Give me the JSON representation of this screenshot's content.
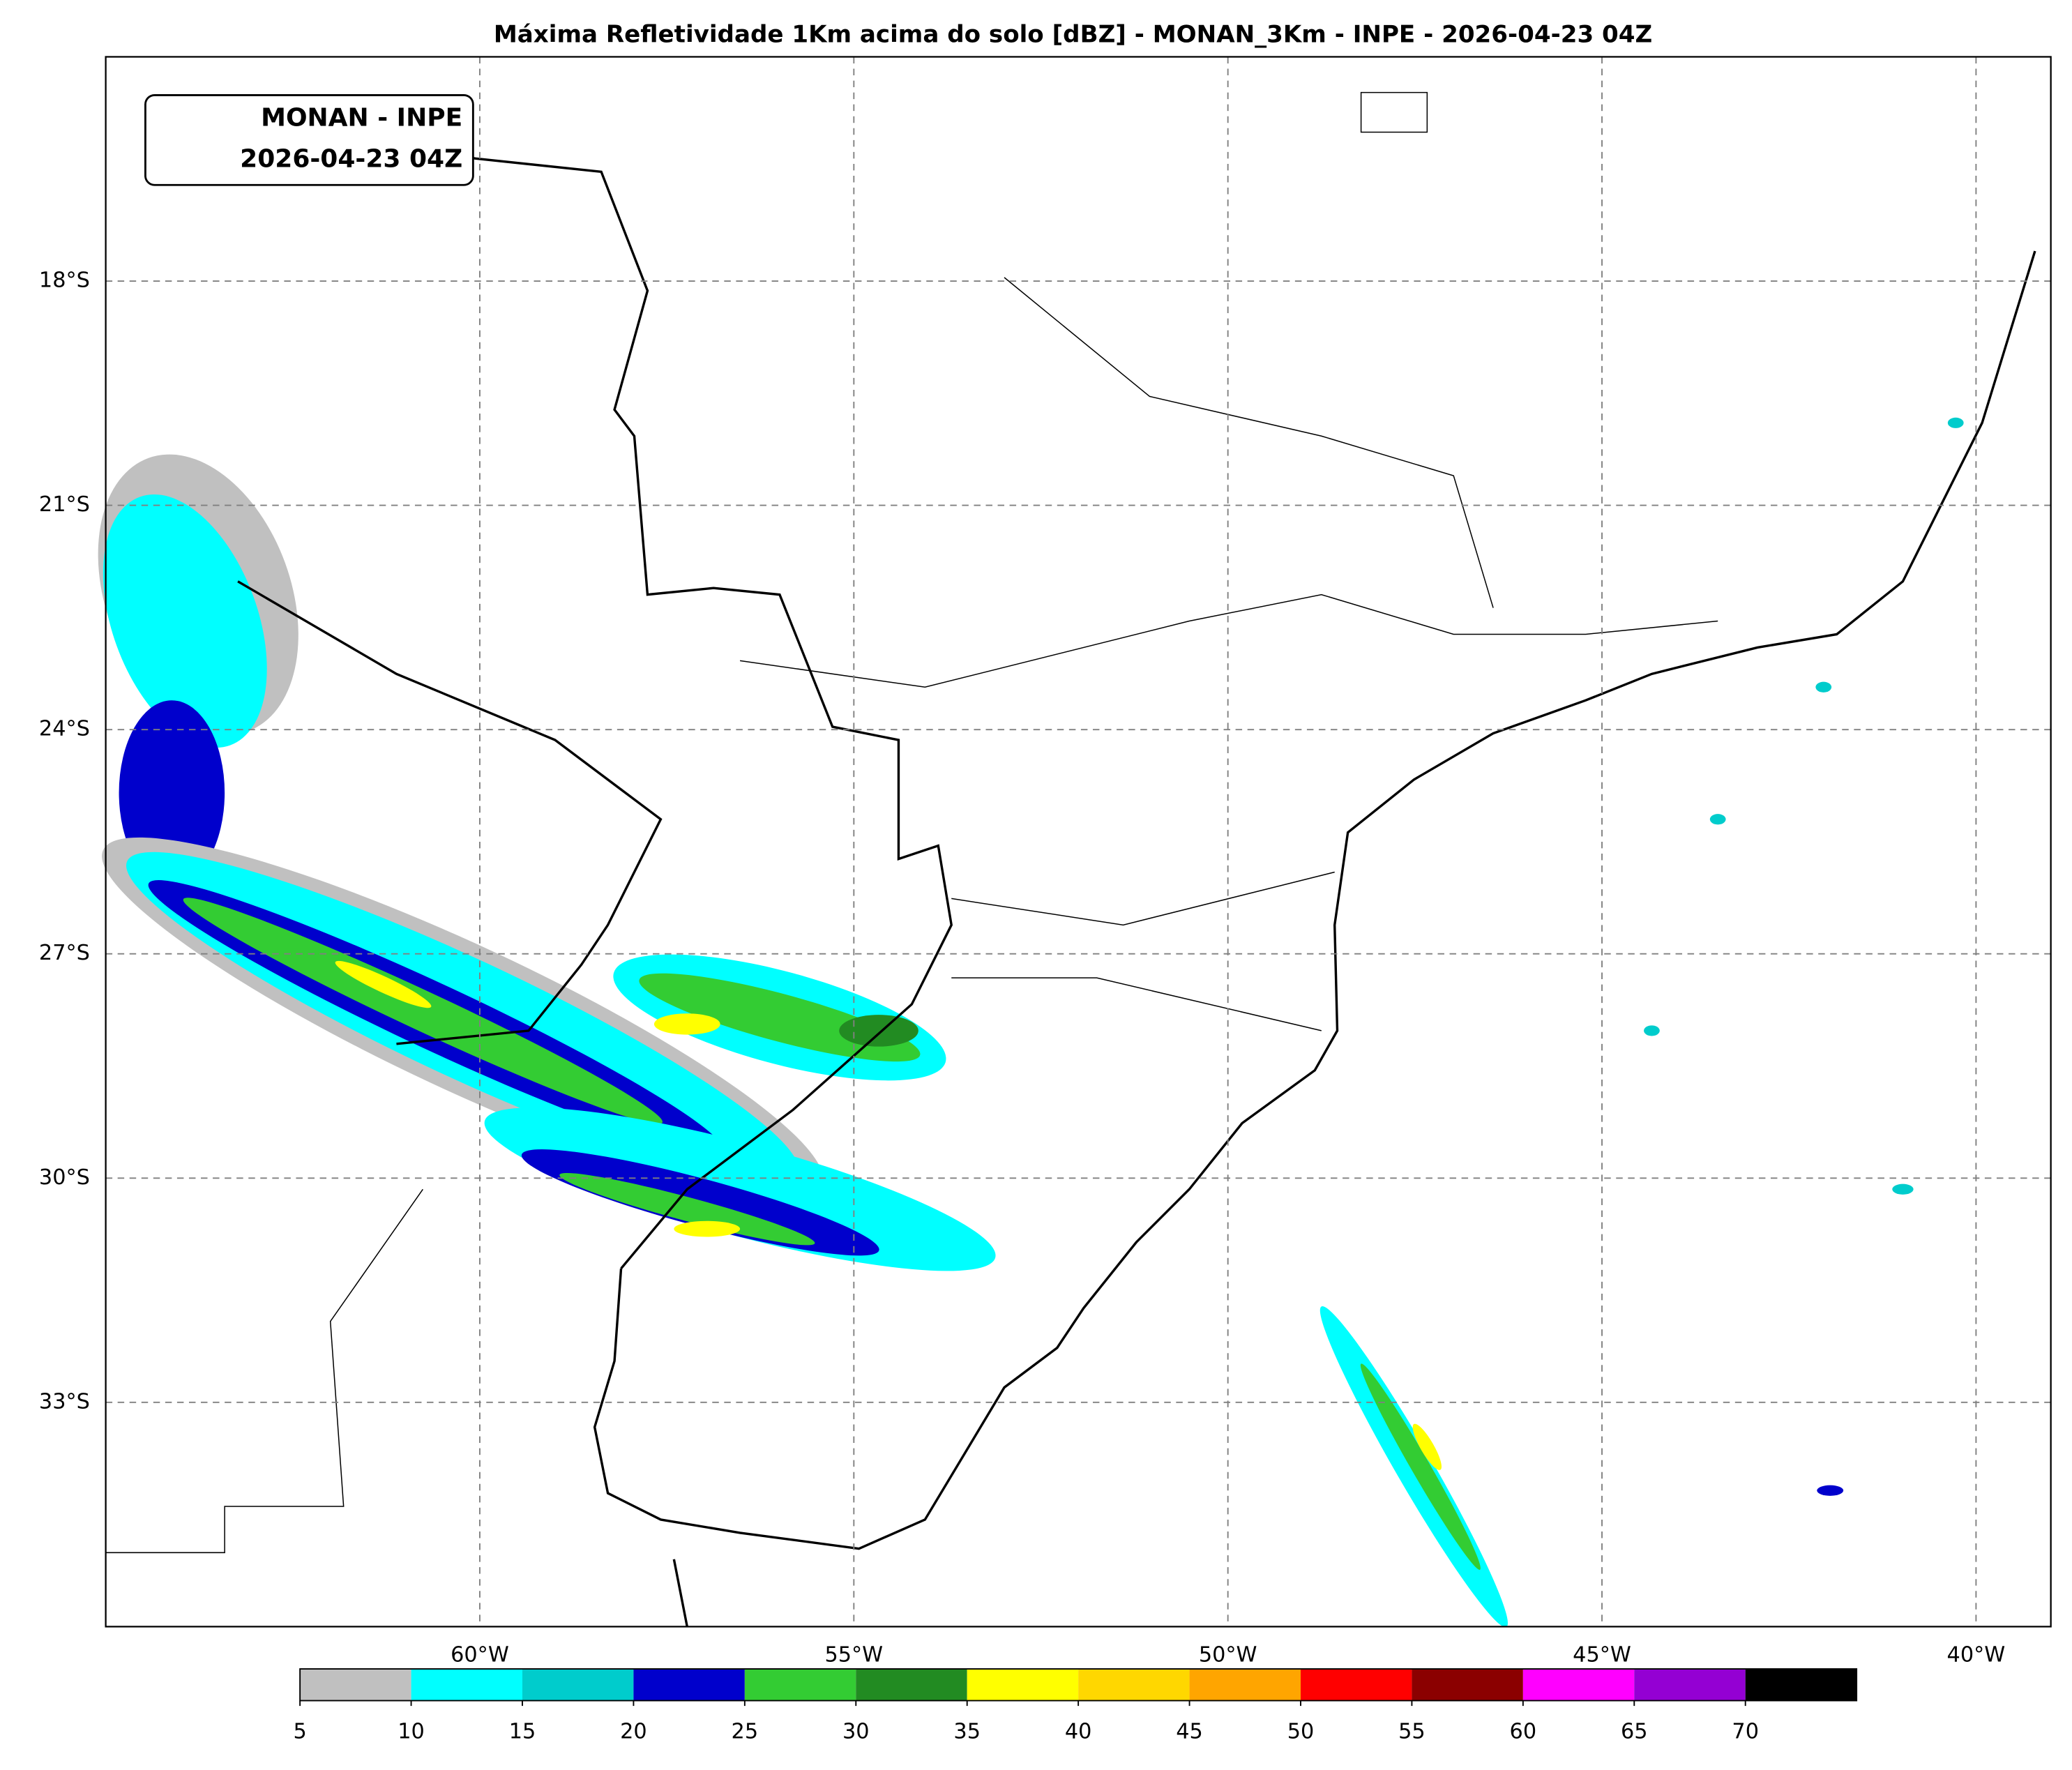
{
  "chart_data": {
    "type": "map",
    "title": "Máxima Refletividade 1Km acima do solo [dBZ] - MONAN_3Km - INPE - 2026-04-23 04Z",
    "annotation": [
      "MONAN - INPE",
      "2026-04-23 04Z"
    ],
    "xlim": [
      -65,
      -39
    ],
    "ylim": [
      -36,
      -15
    ],
    "xticks": [
      {
        "value": -60,
        "label": "60°W"
      },
      {
        "value": -55,
        "label": "55°W"
      },
      {
        "value": -50,
        "label": "50°W"
      },
      {
        "value": -45,
        "label": "45°W"
      },
      {
        "value": -40,
        "label": "40°W"
      }
    ],
    "yticks": [
      {
        "value": -18,
        "label": "18°S"
      },
      {
        "value": -21,
        "label": "21°S"
      },
      {
        "value": -24,
        "label": "24°S"
      },
      {
        "value": -27,
        "label": "27°S"
      },
      {
        "value": -30,
        "label": "30°S"
      },
      {
        "value": -33,
        "label": "33°S"
      }
    ],
    "grid": true,
    "colorbar": {
      "lim": [
        5,
        75
      ],
      "ticks": [
        5,
        10,
        15,
        20,
        25,
        30,
        35,
        40,
        45,
        50,
        55,
        60,
        65,
        70
      ],
      "colors": [
        "#c0c0c0",
        "#00ffff",
        "#00cccc",
        "#0000cc",
        "#33cc33",
        "#228b22",
        "#ffff00",
        "#ffd700",
        "#ffa500",
        "#ff0000",
        "#8b0000",
        "#ff00ff",
        "#9400d3",
        "#000000"
      ]
    }
  }
}
